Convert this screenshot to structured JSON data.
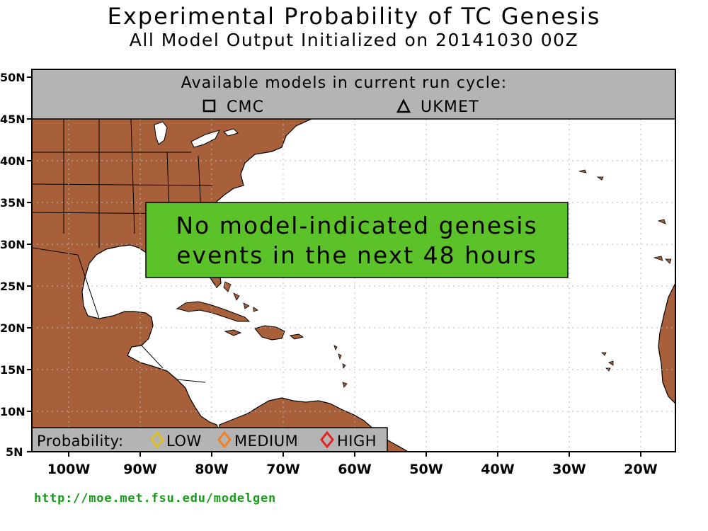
{
  "title": "Experimental Probability of TC Genesis",
  "subtitle": "All Model Output Initialized on 20141030 00Z",
  "models_banner": {
    "heading": "Available models in current run cycle:",
    "models": [
      {
        "name": "CMC",
        "marker": "square-icon"
      },
      {
        "name": "UKMET",
        "marker": "triangle-icon"
      }
    ]
  },
  "notice": {
    "line1": "No model-indicated genesis",
    "line2": "events in the next 48 hours"
  },
  "legend": {
    "label": "Probability:",
    "levels": [
      {
        "name": "LOW",
        "color": "#e0c020",
        "marker": "diamond-icon"
      },
      {
        "name": "MEDIUM",
        "color": "#f08020",
        "marker": "diamond-icon"
      },
      {
        "name": "HIGH",
        "color": "#e82020",
        "marker": "diamond-icon"
      }
    ]
  },
  "axes": {
    "lat_labels": [
      "50N",
      "45N",
      "40N",
      "35N",
      "30N",
      "25N",
      "20N",
      "15N",
      "10N",
      "5N"
    ],
    "lon_labels": [
      "100W",
      "90W",
      "80W",
      "70W",
      "60W",
      "50W",
      "40W",
      "30W",
      "20W"
    ]
  },
  "colors": {
    "land": "#a8603a",
    "ocean": "#ffffff",
    "banner": "#b4b4b4",
    "notice": "#5cc22a",
    "url": "#179a17"
  },
  "footer_url": "http://moe.met.fsu.edu/modelgen"
}
